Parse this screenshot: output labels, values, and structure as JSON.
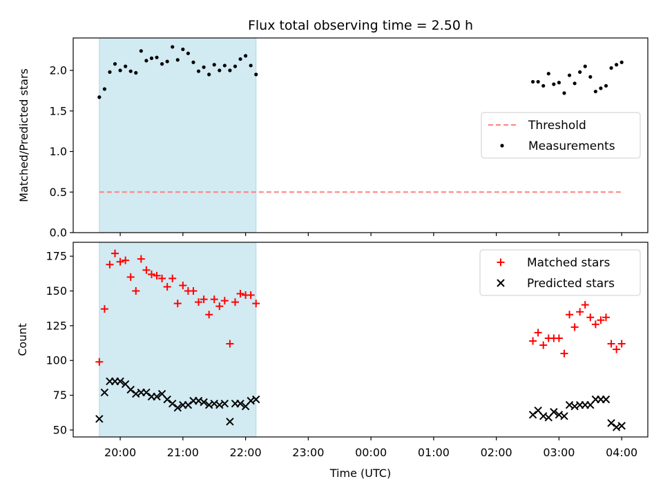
{
  "figure": {
    "title": "Flux total observing time = 2.50 h",
    "xlabel": "Time (UTC)",
    "shade_color": "#add8e6"
  },
  "chart_data": [
    {
      "type": "scatter",
      "ylabel": "Matched/Predicted stars",
      "xlim": [
        "19:15",
        "04:25"
      ],
      "ylim": [
        0,
        2.4
      ],
      "yticks": [
        0.0,
        0.5,
        1.0,
        1.5,
        2.0
      ],
      "ytick_labels": [
        "0.0",
        "0.5",
        "1.0",
        "1.5",
        "2.0"
      ],
      "shaded_span": [
        "19:40",
        "22:10"
      ],
      "grid": false,
      "legend_position": "center-right",
      "series": [
        {
          "name": "Threshold",
          "kind": "dashed-line",
          "color": "#ff7f7f",
          "x": [
            "19:40",
            "04:00"
          ],
          "y": [
            0.5,
            0.5
          ]
        },
        {
          "name": "Measurements",
          "kind": "dot",
          "color": "#000000",
          "x": [
            "19:40",
            "19:45",
            "19:50",
            "19:55",
            "20:00",
            "20:05",
            "20:10",
            "20:15",
            "20:20",
            "20:25",
            "20:30",
            "20:35",
            "20:40",
            "20:45",
            "20:50",
            "20:55",
            "21:00",
            "21:05",
            "21:10",
            "21:15",
            "21:20",
            "21:25",
            "21:30",
            "21:35",
            "21:40",
            "21:45",
            "21:50",
            "21:55",
            "22:00",
            "22:05",
            "22:10",
            "02:35",
            "02:40",
            "02:45",
            "02:50",
            "02:55",
            "03:00",
            "03:05",
            "03:10",
            "03:15",
            "03:20",
            "03:25",
            "03:30",
            "03:35",
            "03:40",
            "03:45",
            "03:50",
            "03:55",
            "04:00"
          ],
          "y": [
            1.67,
            1.77,
            1.98,
            2.08,
            2.0,
            2.05,
            1.99,
            1.97,
            2.24,
            2.12,
            2.15,
            2.16,
            2.08,
            2.11,
            2.29,
            2.13,
            2.26,
            2.21,
            2.1,
            1.99,
            2.04,
            1.95,
            2.07,
            2.0,
            2.06,
            2.0,
            2.05,
            2.14,
            2.18,
            2.06,
            1.95,
            1.86,
            1.86,
            1.81,
            1.96,
            1.83,
            1.85,
            1.72,
            1.94,
            1.84,
            1.98,
            2.05,
            1.92,
            1.74,
            1.78,
            1.81,
            2.03,
            2.07,
            2.1
          ]
        }
      ]
    },
    {
      "type": "scatter",
      "ylabel": "Count",
      "xlim": [
        "19:15",
        "04:25"
      ],
      "ylim": [
        45,
        185
      ],
      "yticks": [
        50,
        75,
        100,
        125,
        150,
        175
      ],
      "ytick_labels": [
        "50",
        "75",
        "100",
        "125",
        "150",
        "175"
      ],
      "xticks": [
        "20:00",
        "21:00",
        "22:00",
        "23:00",
        "00:00",
        "01:00",
        "02:00",
        "03:00",
        "04:00"
      ],
      "xtick_labels": [
        "20:00",
        "21:00",
        "22:00",
        "23:00",
        "00:00",
        "01:00",
        "02:00",
        "03:00",
        "04:00"
      ],
      "shaded_span": [
        "19:40",
        "22:10"
      ],
      "grid": false,
      "legend_position": "top-right",
      "series": [
        {
          "name": "Matched stars",
          "kind": "plus",
          "color": "#ff0000",
          "x": [
            "19:40",
            "19:45",
            "19:50",
            "19:55",
            "20:00",
            "20:05",
            "20:10",
            "20:15",
            "20:20",
            "20:25",
            "20:30",
            "20:35",
            "20:40",
            "20:45",
            "20:50",
            "20:55",
            "21:00",
            "21:05",
            "21:10",
            "21:15",
            "21:20",
            "21:25",
            "21:30",
            "21:35",
            "21:40",
            "21:45",
            "21:50",
            "21:55",
            "22:00",
            "22:05",
            "22:10",
            "02:35",
            "02:40",
            "02:45",
            "02:50",
            "02:55",
            "03:00",
            "03:05",
            "03:10",
            "03:15",
            "03:20",
            "03:25",
            "03:30",
            "03:35",
            "03:40",
            "03:45",
            "03:50",
            "03:55",
            "04:00"
          ],
          "y": [
            99,
            137,
            169,
            177,
            171,
            172,
            160,
            150,
            173,
            165,
            162,
            161,
            159,
            153,
            159,
            141,
            154,
            150,
            150,
            142,
            144,
            133,
            144,
            139,
            143,
            112,
            142,
            148,
            147,
            147,
            141,
            114,
            120,
            111,
            116,
            116,
            116,
            105,
            133,
            124,
            135,
            140,
            131,
            126,
            129,
            131,
            112,
            108,
            112
          ]
        },
        {
          "name": "Predicted stars",
          "kind": "x",
          "color": "#000000",
          "x": [
            "19:40",
            "19:45",
            "19:50",
            "19:55",
            "20:00",
            "20:05",
            "20:10",
            "20:15",
            "20:20",
            "20:25",
            "20:30",
            "20:35",
            "20:40",
            "20:45",
            "20:50",
            "20:55",
            "21:00",
            "21:05",
            "21:10",
            "21:15",
            "21:20",
            "21:25",
            "21:30",
            "21:35",
            "21:40",
            "21:45",
            "21:50",
            "21:55",
            "22:00",
            "22:05",
            "22:10",
            "02:35",
            "02:40",
            "02:45",
            "02:50",
            "02:55",
            "03:00",
            "03:05",
            "03:10",
            "03:15",
            "03:20",
            "03:25",
            "03:30",
            "03:35",
            "03:40",
            "03:45",
            "03:50",
            "03:55",
            "04:00"
          ],
          "y": [
            58,
            77,
            85,
            85,
            85,
            83,
            79,
            76,
            77,
            77,
            74,
            74,
            76,
            72,
            69,
            66,
            68,
            68,
            71,
            71,
            70,
            68,
            69,
            68,
            69,
            56,
            69,
            69,
            67,
            71,
            72,
            61,
            64,
            60,
            59,
            63,
            61,
            60,
            68,
            67,
            68,
            68,
            68,
            72,
            72,
            72,
            55,
            52,
            53
          ]
        }
      ]
    }
  ]
}
